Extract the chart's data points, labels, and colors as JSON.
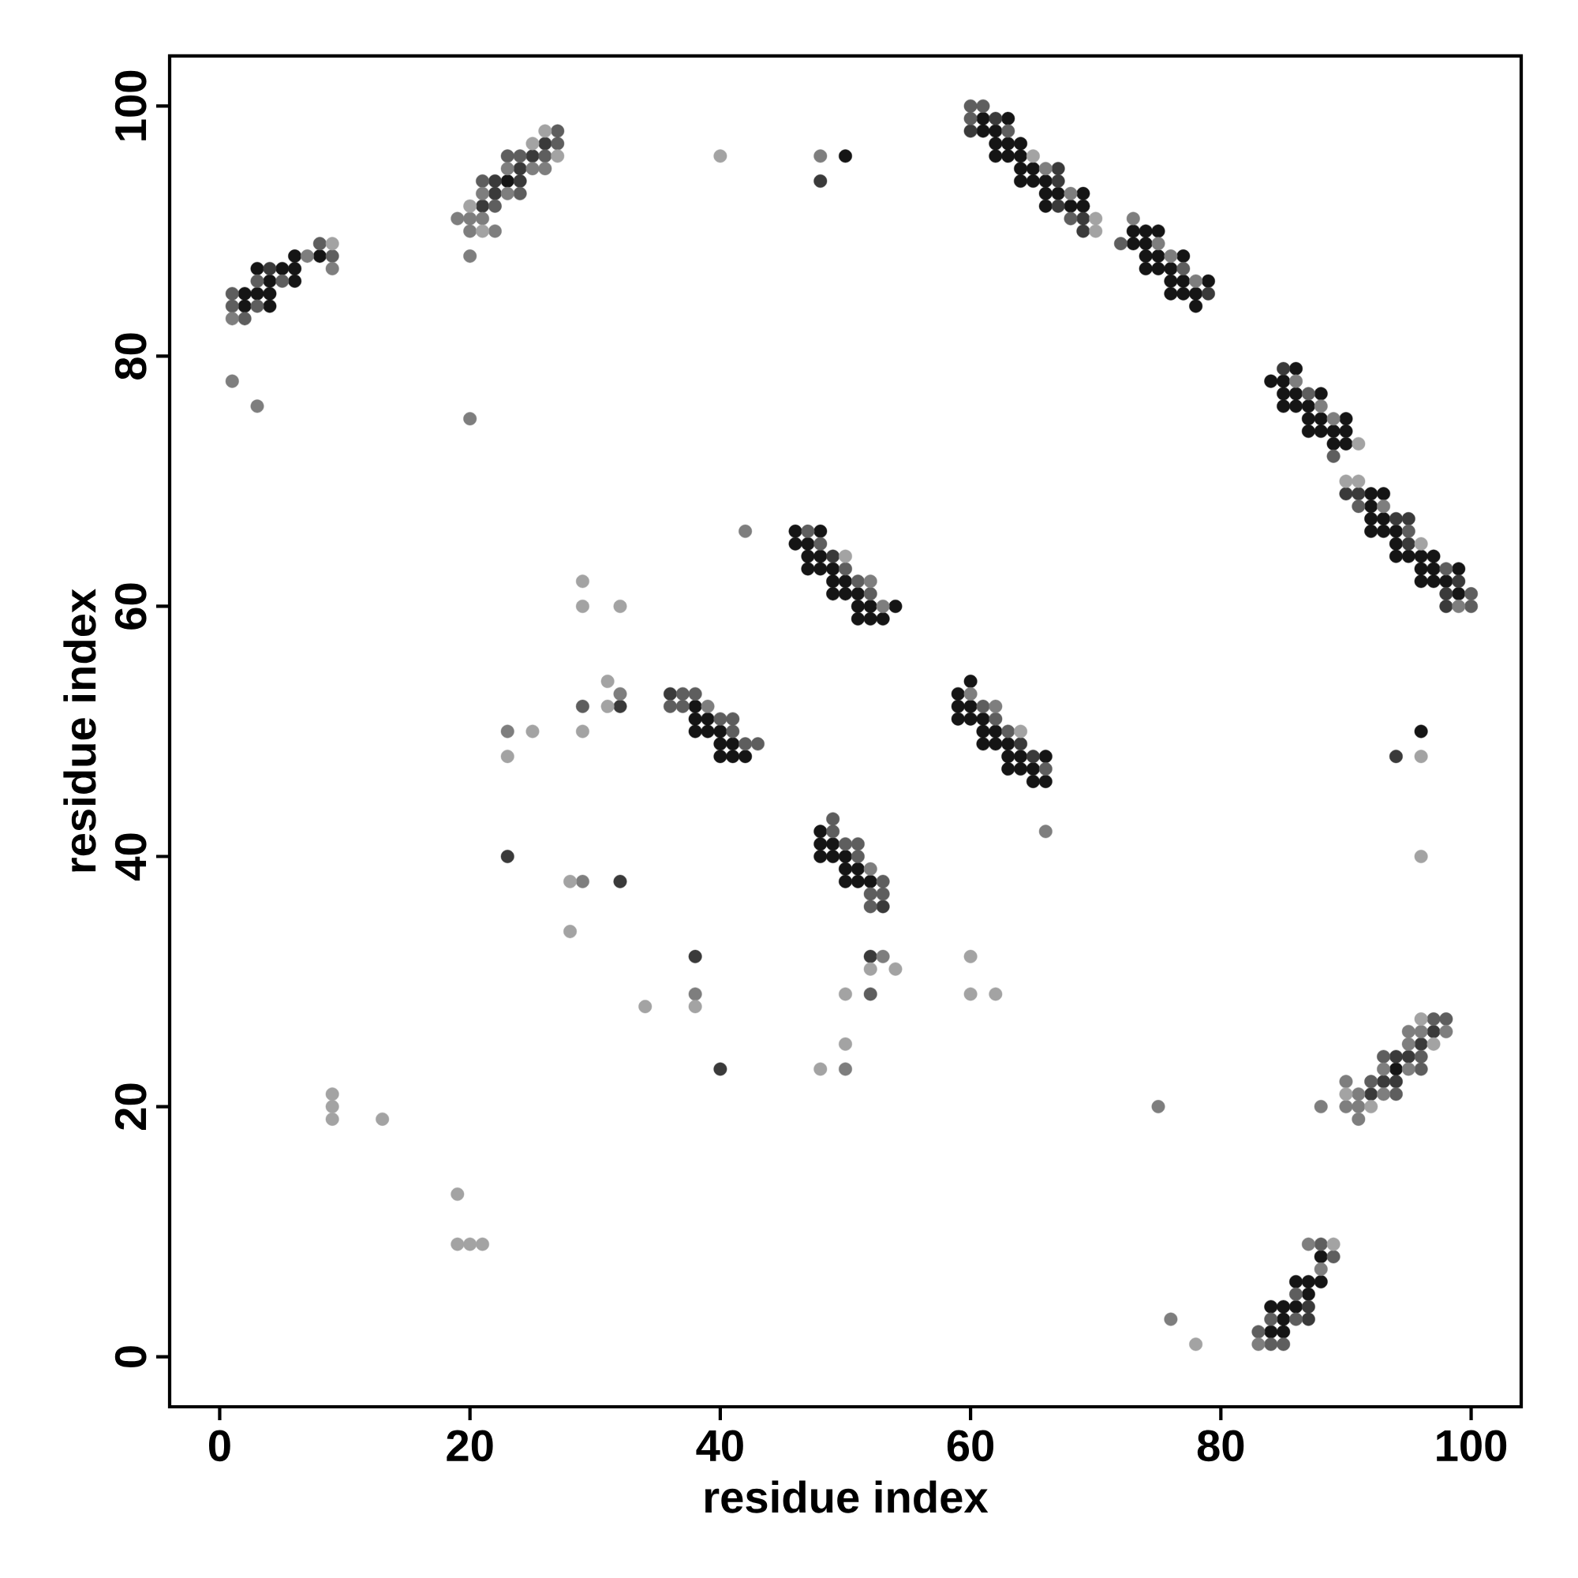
{
  "chart_data": {
    "type": "scatter",
    "xlabel": "residue index",
    "ylabel": "residue index",
    "xlim": [
      -4,
      104
    ],
    "ylim": [
      -4,
      104
    ],
    "xticks": [
      0,
      20,
      40,
      60,
      80,
      100
    ],
    "yticks": [
      0,
      20,
      40,
      60,
      80,
      100
    ],
    "marker": "circle",
    "legend": false,
    "grid": false,
    "series": [
      {
        "color": "#151515",
        "x": [
          2,
          4,
          2,
          3,
          4,
          4,
          6,
          3,
          5,
          6,
          6,
          8,
          23,
          61,
          63,
          61,
          62,
          62,
          63,
          64,
          62,
          63,
          64,
          64,
          65,
          64,
          65,
          66,
          66,
          67,
          69,
          66,
          68,
          69,
          73,
          74,
          75,
          73,
          74,
          74,
          75,
          77,
          74,
          75,
          76,
          76,
          77,
          79,
          76,
          77,
          78,
          78,
          86,
          84,
          85,
          85,
          86,
          88,
          85,
          86,
          87,
          87,
          88,
          90,
          87,
          88,
          89,
          90,
          89,
          90,
          92,
          93,
          92,
          92,
          93,
          92,
          93,
          94,
          94,
          94,
          95,
          96,
          97,
          96,
          97,
          99,
          96,
          97,
          98,
          99,
          46,
          48,
          46,
          47,
          47,
          48,
          47,
          48,
          49,
          49,
          50,
          49,
          50,
          51,
          51,
          52,
          54,
          51,
          52,
          53,
          38,
          38,
          39,
          38,
          39,
          40,
          40,
          41,
          40,
          41,
          42,
          60,
          59,
          59,
          60,
          59,
          60,
          61,
          61,
          62,
          61,
          62,
          63,
          63,
          64,
          66,
          63,
          64,
          65,
          65,
          66,
          48,
          48,
          49,
          48,
          49,
          50,
          50,
          51,
          50,
          51,
          52,
          94,
          84,
          85,
          85,
          84,
          85,
          86,
          87,
          86,
          87,
          88,
          88,
          50,
          96
        ],
        "values": [
          84,
          84,
          85,
          85,
          85,
          86,
          86,
          87,
          87,
          87,
          88,
          88,
          94,
          99,
          99,
          98,
          98,
          97,
          97,
          97,
          96,
          96,
          96,
          95,
          95,
          94,
          94,
          94,
          93,
          93,
          93,
          92,
          92,
          92,
          90,
          90,
          90,
          89,
          89,
          88,
          88,
          88,
          87,
          87,
          87,
          86,
          86,
          86,
          85,
          85,
          85,
          84,
          79,
          78,
          78,
          77,
          77,
          77,
          76,
          76,
          76,
          75,
          75,
          75,
          74,
          74,
          74,
          74,
          73,
          73,
          69,
          69,
          68,
          67,
          67,
          66,
          66,
          66,
          65,
          64,
          64,
          64,
          64,
          63,
          63,
          63,
          62,
          62,
          62,
          61,
          66,
          66,
          65,
          65,
          64,
          64,
          63,
          63,
          63,
          62,
          62,
          61,
          61,
          61,
          60,
          60,
          60,
          59,
          59,
          59,
          52,
          51,
          51,
          50,
          50,
          50,
          49,
          49,
          48,
          48,
          48,
          54,
          53,
          52,
          52,
          51,
          51,
          51,
          50,
          50,
          49,
          49,
          49,
          48,
          48,
          48,
          47,
          47,
          47,
          46,
          46,
          42,
          41,
          41,
          40,
          40,
          40,
          39,
          39,
          38,
          38,
          38,
          23,
          2,
          2,
          3,
          4,
          4,
          4,
          5,
          6,
          6,
          6,
          8,
          96,
          50
        ]
      },
      {
        "color": "#3a3a3a",
        "x": [
          4,
          21,
          22,
          22,
          24,
          24,
          25,
          26,
          62,
          60,
          67,
          67,
          67,
          69,
          69,
          79,
          85,
          90,
          91,
          94,
          95,
          95,
          99,
          98,
          98,
          49,
          36,
          64,
          65,
          53,
          92,
          93,
          94,
          94,
          95,
          96,
          97,
          87,
          87,
          32,
          23,
          32,
          38,
          52,
          48,
          94,
          40
        ],
        "values": [
          87,
          92,
          93,
          94,
          94,
          95,
          96,
          97,
          99,
          98,
          95,
          94,
          92,
          91,
          90,
          85,
          79,
          69,
          69,
          67,
          67,
          65,
          62,
          61,
          60,
          64,
          53,
          49,
          48,
          36,
          21,
          22,
          22,
          24,
          24,
          25,
          26,
          3,
          4,
          52,
          40,
          38,
          32,
          32,
          94,
          48,
          23
        ]
      },
      {
        "color": "#5e5e5e",
        "x": [
          2,
          1,
          3,
          1,
          3,
          5,
          9,
          8,
          22,
          24,
          21,
          23,
          24,
          26,
          27,
          27,
          60,
          61,
          60,
          63,
          68,
          72,
          77,
          87,
          89,
          91,
          95,
          98,
          100,
          100,
          47,
          48,
          50,
          51,
          52,
          37,
          38,
          36,
          37,
          40,
          41,
          41,
          42,
          43,
          61,
          62,
          63,
          66,
          49,
          49,
          50,
          51,
          51,
          53,
          52,
          53,
          52,
          94,
          92,
          96,
          93,
          96,
          97,
          98,
          84,
          85,
          83,
          84,
          86,
          86,
          89,
          88,
          29,
          52
        ],
        "values": [
          83,
          84,
          84,
          85,
          86,
          86,
          88,
          89,
          92,
          93,
          94,
          96,
          96,
          96,
          97,
          98,
          100,
          100,
          99,
          98,
          91,
          89,
          87,
          77,
          72,
          68,
          66,
          63,
          61,
          60,
          66,
          65,
          63,
          62,
          61,
          53,
          53,
          52,
          52,
          51,
          51,
          50,
          49,
          49,
          52,
          51,
          50,
          47,
          43,
          42,
          41,
          41,
          40,
          38,
          37,
          37,
          36,
          21,
          22,
          23,
          24,
          24,
          27,
          27,
          1,
          1,
          2,
          3,
          3,
          5,
          8,
          9,
          52,
          29
        ]
      },
      {
        "color": "#7e7e7e",
        "x": [
          1,
          7,
          9,
          20,
          20,
          22,
          19,
          20,
          21,
          21,
          23,
          23,
          25,
          26,
          66,
          68,
          73,
          75,
          76,
          78,
          86,
          88,
          89,
          93,
          99,
          42,
          52,
          53,
          39,
          60,
          62,
          66,
          52,
          88,
          91,
          90,
          91,
          91,
          93,
          90,
          93,
          95,
          95,
          95,
          96,
          98,
          83,
          88,
          87,
          32,
          23,
          29,
          38,
          53,
          48,
          1,
          3,
          20,
          50,
          75,
          76
        ],
        "values": [
          83,
          88,
          87,
          88,
          90,
          90,
          91,
          91,
          91,
          93,
          93,
          95,
          95,
          95,
          95,
          93,
          91,
          89,
          88,
          86,
          78,
          76,
          75,
          68,
          60,
          66,
          62,
          60,
          52,
          53,
          52,
          42,
          39,
          20,
          19,
          20,
          20,
          21,
          21,
          22,
          23,
          23,
          25,
          26,
          26,
          26,
          1,
          7,
          9,
          53,
          50,
          38,
          29,
          32,
          96,
          78,
          76,
          75,
          23,
          20,
          3
        ]
      },
      {
        "color": "#a3a3a3",
        "x": [
          9,
          21,
          20,
          27,
          25,
          26,
          65,
          70,
          70,
          91,
          90,
          91,
          96,
          50,
          64,
          92,
          90,
          97,
          96,
          89,
          29,
          29,
          32,
          31,
          31,
          25,
          29,
          23,
          28,
          28,
          38,
          34,
          52,
          54,
          50,
          50,
          40,
          96,
          96,
          60,
          60,
          62,
          48,
          9,
          9,
          9,
          13,
          19,
          19,
          20,
          21,
          78
        ],
        "values": [
          89,
          90,
          92,
          96,
          97,
          98,
          96,
          91,
          90,
          73,
          70,
          70,
          65,
          64,
          50,
          20,
          21,
          25,
          27,
          9,
          62,
          60,
          60,
          54,
          52,
          50,
          50,
          48,
          38,
          34,
          28,
          28,
          31,
          31,
          29,
          25,
          96,
          48,
          40,
          32,
          29,
          29,
          23,
          21,
          20,
          19,
          19,
          13,
          9,
          9,
          9,
          1
        ]
      }
    ]
  }
}
